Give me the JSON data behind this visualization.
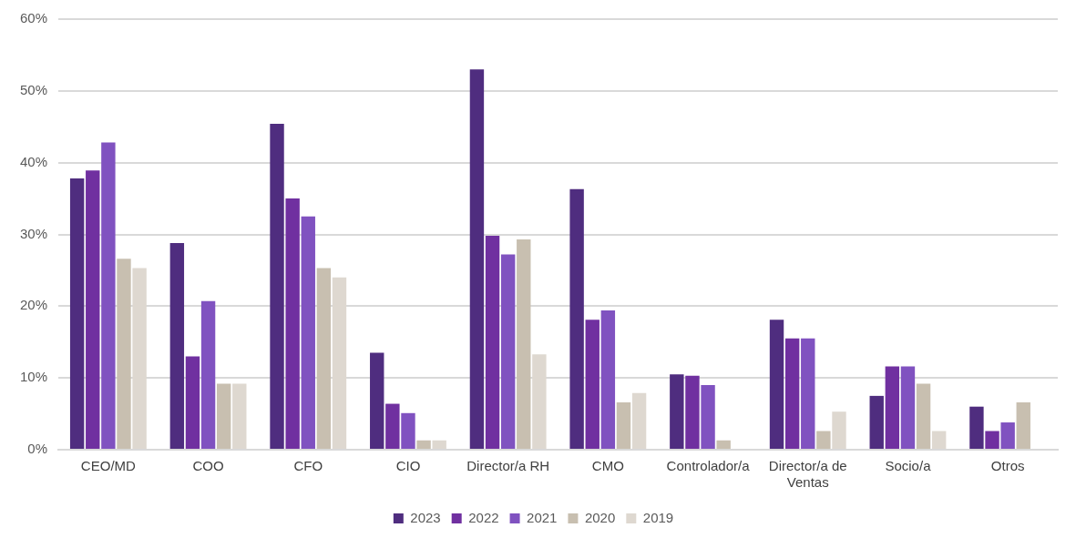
{
  "chart_data": {
    "type": "bar",
    "categories": [
      "CEO/MD",
      "COO",
      "CFO",
      "CIO",
      "Director/a RH",
      "CMO",
      "Controlador/a",
      "Director/a de Ventas",
      "Socio/a",
      "Otros"
    ],
    "series": [
      {
        "name": "2023",
        "color": "#4f2d7f",
        "values": [
          37.8,
          28.8,
          45.4,
          13.5,
          53.0,
          36.3,
          10.5,
          18.1,
          7.5,
          6.0
        ]
      },
      {
        "name": "2022",
        "color": "#7030a0",
        "values": [
          38.9,
          13.0,
          35.0,
          6.4,
          29.8,
          18.1,
          10.3,
          15.5,
          11.6,
          2.6
        ]
      },
      {
        "name": "2021",
        "color": "#8052c0",
        "values": [
          42.8,
          20.7,
          32.5,
          5.1,
          27.2,
          19.4,
          9.0,
          15.5,
          11.6,
          3.8
        ]
      },
      {
        "name": "2020",
        "color": "#c8bfb0",
        "values": [
          26.6,
          9.2,
          25.3,
          1.3,
          29.3,
          6.6,
          1.3,
          2.6,
          9.2,
          6.6
        ]
      },
      {
        "name": "2019",
        "color": "#ded8d0",
        "values": [
          25.3,
          9.2,
          24.0,
          1.3,
          13.3,
          7.9,
          null,
          5.3,
          2.6,
          null
        ]
      }
    ],
    "ylim": [
      0,
      60
    ],
    "yticks": [
      {
        "value": 0,
        "label": "0%"
      },
      {
        "value": 10,
        "label": "10%"
      },
      {
        "value": 20,
        "label": "20%"
      },
      {
        "value": 30,
        "label": "30%"
      },
      {
        "value": 40,
        "label": "40%"
      },
      {
        "value": 50,
        "label": "50%"
      },
      {
        "value": 60,
        "label": "60%"
      }
    ],
    "grid": "y",
    "legend": "bottom"
  }
}
